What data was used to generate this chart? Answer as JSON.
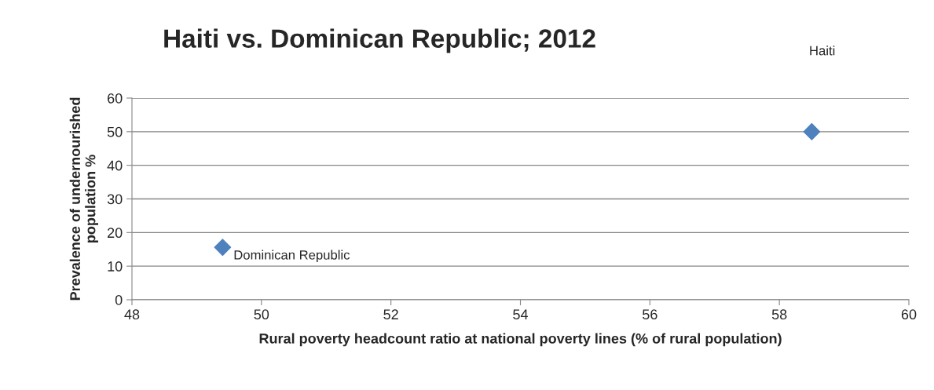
{
  "chart_data": {
    "type": "scatter",
    "title": "Haiti vs. Dominican Republic; 2012",
    "xlabel": "Rural poverty headcount ratio at national poverty lines (% of rural population)",
    "ylabel": "Prevalence of undernourished population %",
    "series": [
      {
        "color": "#4f81bd",
        "x": [
          49.4,
          58.5
        ],
        "values": [
          15.6,
          50.0
        ]
      }
    ],
    "annotations": [
      {
        "text": "Dominican Republic",
        "x": 49.4,
        "y": 15.6
      },
      "Haiti"
    ],
    "xlim": [
      48,
      60
    ],
    "xticks": [
      48,
      50,
      52,
      54,
      56,
      58,
      60
    ],
    "ylim": [
      0,
      60
    ],
    "yticks": [
      0,
      10,
      20,
      30,
      40,
      50,
      60
    ],
    "grid": "y",
    "marker": "diamond"
  }
}
